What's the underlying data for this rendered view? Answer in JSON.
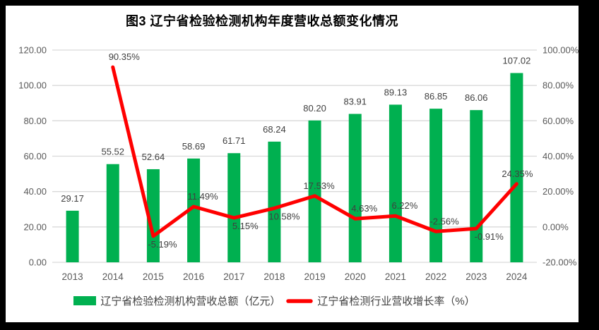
{
  "title": "图3 辽宁省检验检测机构年度营收总额变化情况",
  "colors": {
    "bar": "#00B050",
    "line": "#FF0000",
    "grid": "#D9D9D9",
    "axis_text": "#595959",
    "label_text": "#404040",
    "frame": "#000000",
    "background": "#FFFFFF"
  },
  "chart_data": {
    "type": "bar+line",
    "title": "图3 辽宁省检验检测机构年度营收总额变化情况",
    "categories": [
      "2013",
      "2014",
      "2015",
      "2016",
      "2017",
      "2018",
      "2019",
      "2020",
      "2021",
      "2022",
      "2023",
      "2024"
    ],
    "series": [
      {
        "name": "辽宁省检验检测机构营收总额（亿元）",
        "type": "bar",
        "axis": "left",
        "values": [
          29.17,
          55.52,
          52.64,
          58.69,
          61.71,
          68.24,
          80.2,
          83.91,
          89.13,
          86.85,
          86.06,
          107.02
        ],
        "data_labels": [
          "29.17",
          "55.52",
          "52.64",
          "58.69",
          "61.71",
          "68.24",
          "80.20",
          "83.91",
          "89.13",
          "86.85",
          "86.06",
          "107.02"
        ]
      },
      {
        "name": "辽宁省检测行业营收增长率（%）",
        "type": "line",
        "axis": "right",
        "values": [
          null,
          90.35,
          -5.19,
          11.49,
          5.15,
          10.58,
          17.53,
          4.63,
          6.22,
          -2.56,
          -0.91,
          24.35
        ],
        "data_labels": [
          "",
          "90.35%",
          "-5.19%",
          "11.49%",
          "5.15%",
          "10.58%",
          "17.53%",
          "4.63%",
          "6.22%",
          "-2.56%",
          "-0.91%",
          "24.35%"
        ],
        "label_side": [
          "",
          "above",
          "below",
          "above",
          "below",
          "below",
          "above",
          "above",
          "above",
          "above",
          "below",
          "above"
        ],
        "label_dx": [
          0,
          16,
          13,
          13,
          16,
          14,
          6,
          13,
          13,
          12,
          18,
          1
        ]
      }
    ],
    "left_axis": {
      "min": 0,
      "max": 120,
      "step": 20,
      "ticks": [
        "0.00",
        "20.00",
        "40.00",
        "60.00",
        "80.00",
        "100.00",
        "120.00"
      ]
    },
    "right_axis": {
      "min": -20,
      "max": 100,
      "step": 20,
      "ticks": [
        "-20.00%",
        "0.00%",
        "20.00%",
        "40.00%",
        "60.00%",
        "80.00%",
        "100.00%"
      ]
    },
    "grid": true,
    "legend_position": "bottom"
  },
  "legend": {
    "items": [
      {
        "label": "辽宁省检验检测机构营收总额（亿元）",
        "swatch": "bar"
      },
      {
        "label": "辽宁省检测行业营收增长率（%）",
        "swatch": "line"
      }
    ]
  }
}
